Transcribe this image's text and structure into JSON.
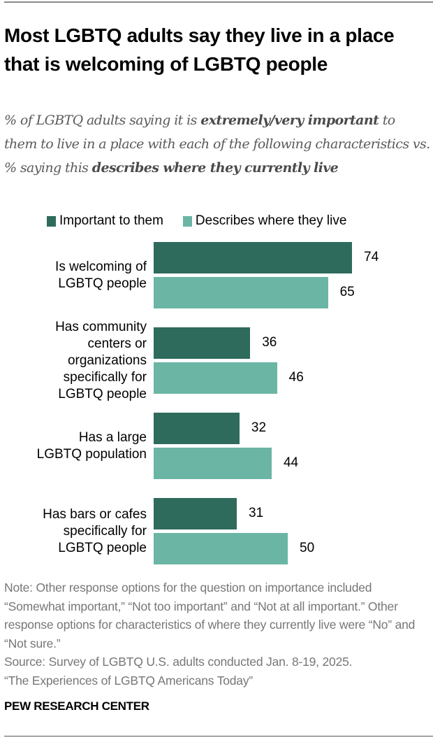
{
  "title": "Most LGBTQ adults say they live in a place that is welcoming of LGBTQ people",
  "subtitle": [
    {
      "text": "% of LGBTQ adults saying it is ",
      "bold": false
    },
    {
      "text": "extremely/very important",
      "bold": true
    },
    {
      "text": " to them to live in a place with each of the following characteristics vs. % saying this ",
      "bold": false
    },
    {
      "text": "describes where they currently live",
      "bold": true
    }
  ],
  "colors": {
    "important": "#2e6b5c",
    "describes": "#6bb5a4"
  },
  "chart_data": {
    "type": "bar",
    "orientation": "horizontal",
    "categories": [
      "Is welcoming of LGBTQ people",
      "Has community centers or organizations specifically for LGBTQ people",
      "Has a large LGBTQ population",
      "Has bars or cafes specifically for LGBTQ people"
    ],
    "category_lines": [
      [
        "Is welcoming of",
        "LGBTQ people"
      ],
      [
        "Has community",
        "centers or",
        "organizations",
        "specifically for",
        "LGBTQ people"
      ],
      [
        "Has a large",
        "LGBTQ population"
      ],
      [
        "Has bars or cafes",
        "specifically for",
        "LGBTQ people"
      ]
    ],
    "series": [
      {
        "name": "Important to them",
        "values": [
          74,
          36,
          32,
          31
        ]
      },
      {
        "name": "Describes where they live",
        "values": [
          65,
          46,
          44,
          50
        ]
      }
    ],
    "legend": "top",
    "grid": false,
    "xlim": [
      0,
      100
    ]
  },
  "note": "Note: Other response options for the question on importance included “Somewhat important,” “Not too important” and “Not at all important.” Other response options for characteristics of where they currently live were “No” and “Not sure.”",
  "source": "Source: Survey of LGBTQ U.S. adults conducted Jan. 8-19, 2025.",
  "report": "“The Experiences of LGBTQ Americans Today”",
  "brand": "PEW RESEARCH CENTER"
}
